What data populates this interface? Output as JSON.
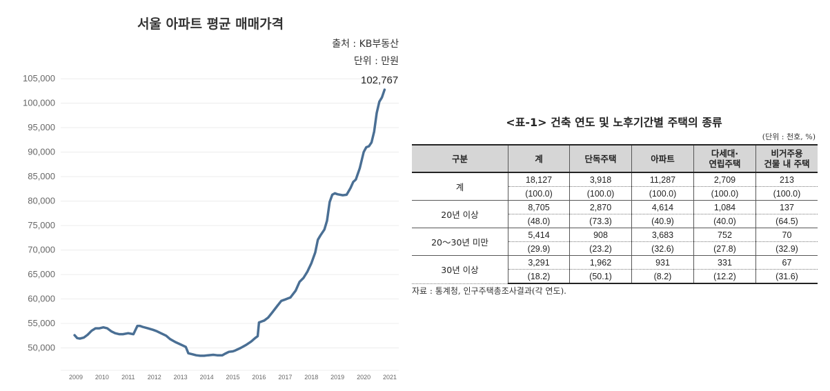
{
  "chart_data": {
    "type": "line",
    "title": "서울 아파트 평균 매매가격",
    "source": "출처 : KB부동산",
    "unit": "단위 : 만원",
    "last_value_label": "102,767",
    "xlim": [
      2009,
      2021
    ],
    "ylim": [
      45000,
      107000
    ],
    "y_ticks": [
      "105,000",
      "100,000",
      "95,000",
      "90,000",
      "85,000",
      "80,000",
      "75,000",
      "70,000",
      "65,000",
      "60,000",
      "55,000",
      "50,000"
    ],
    "y_tick_values": [
      105000,
      100000,
      95000,
      90000,
      85000,
      80000,
      75000,
      70000,
      65000,
      60000,
      55000,
      50000
    ],
    "x_ticks": [
      "2009",
      "2010",
      "2011",
      "2012",
      "2013",
      "2014",
      "2015",
      "2016",
      "2017",
      "2018",
      "2019",
      "2020",
      "2021"
    ],
    "x_tick_values": [
      2009,
      2010,
      2011,
      2012,
      2013,
      2014,
      2015,
      2016,
      2017,
      2018,
      2019,
      2020,
      2021
    ],
    "grid": true,
    "line_color": "#4a6f94",
    "series": [
      {
        "x": [
          2008.95,
          2009.05,
          2009.15,
          2009.3,
          2009.45,
          2009.6,
          2009.75,
          2009.9,
          2010.05,
          2010.2,
          2010.35,
          2010.5,
          2010.65,
          2010.8,
          2011.0,
          2011.2,
          2011.35,
          2011.45,
          2011.55,
          2011.75,
          2011.95,
          2012.1,
          2012.25,
          2012.45,
          2012.6,
          2012.8,
          2013.0,
          2013.2,
          2013.3,
          2013.45,
          2013.6,
          2013.75,
          2013.9,
          2014.05,
          2014.25,
          2014.4,
          2014.6,
          2014.7,
          2014.85,
          2015.0,
          2015.1,
          2015.3,
          2015.5,
          2015.7,
          2015.85,
          2015.95,
          2016.0,
          2016.2,
          2016.35,
          2016.5,
          2016.7,
          2016.85,
          2017.0,
          2017.2,
          2017.4,
          2017.55,
          2017.7,
          2017.85,
          2018.0,
          2018.15,
          2018.25,
          2018.35,
          2018.5,
          2018.6,
          2018.7,
          2018.8,
          2018.9,
          2019.0,
          2019.2,
          2019.35,
          2019.5,
          2019.6,
          2019.7,
          2019.85,
          2020.0,
          2020.1,
          2020.2,
          2020.3,
          2020.4,
          2020.5,
          2020.6,
          2020.7,
          2020.8,
          2020.9,
          2021.0,
          2021.1
        ],
        "y": [
          52600,
          52000,
          51900,
          52100,
          52700,
          53500,
          54000,
          54000,
          54200,
          54000,
          53400,
          53000,
          52800,
          52800,
          53000,
          52800,
          54500,
          54500,
          54300,
          54000,
          53700,
          53400,
          53000,
          52500,
          51800,
          51200,
          50700,
          50200,
          48900,
          48700,
          48500,
          48400,
          48400,
          48500,
          48600,
          48500,
          48500,
          48800,
          49200,
          49300,
          49500,
          50000,
          50600,
          51300,
          52000,
          52400,
          55200,
          55600,
          56200,
          57200,
          58600,
          59600,
          59900,
          60300,
          61700,
          63500,
          64300,
          65600,
          67300,
          69500,
          72100,
          73000,
          74200,
          76000,
          79800,
          81300,
          81600,
          81400,
          81200,
          81300,
          82700,
          83900,
          84400,
          86700,
          90000,
          91000,
          91200,
          92000,
          94200,
          98000,
          100300,
          101200,
          102767,
          102767,
          102767,
          102767
        ]
      }
    ]
  },
  "table": {
    "title": "<표-1> 건축 연도 및 노후기간별 주택의 종류",
    "unit": "(단위 : 천호, %)",
    "headers": [
      {
        "line1": "구분",
        "line2": ""
      },
      {
        "line1": "계",
        "line2": ""
      },
      {
        "line1": "단독주택",
        "line2": ""
      },
      {
        "line1": "아파트",
        "line2": ""
      },
      {
        "line1": "다세대·",
        "line2": "연립주택"
      },
      {
        "line1": "비거주용",
        "line2": "건물 내 주택"
      }
    ],
    "rows": [
      {
        "label": "계",
        "values": [
          "18,127",
          "3,918",
          "11,287",
          "2,709",
          "213"
        ],
        "percents": [
          "(100.0)",
          "(100.0)",
          "(100.0)",
          "(100.0)",
          "(100.0)"
        ]
      },
      {
        "label": "20년 이상",
        "values": [
          "8,705",
          "2,870",
          "4,614",
          "1,084",
          "137"
        ],
        "percents": [
          "(48.0)",
          "(73.3)",
          "(40.9)",
          "(40.0)",
          "(64.5)"
        ]
      },
      {
        "label": "20～30년 미만",
        "values": [
          "5,414",
          "908",
          "3,683",
          "752",
          "70"
        ],
        "percents": [
          "(29.9)",
          "(23.2)",
          "(32.6)",
          "(27.8)",
          "(32.9)"
        ]
      },
      {
        "label": "30년 이상",
        "values": [
          "3,291",
          "1,962",
          "931",
          "331",
          "67"
        ],
        "percents": [
          "(18.2)",
          "(50.1)",
          "(8.2)",
          "(12.2)",
          "(31.6)"
        ]
      }
    ],
    "source": "자료 : 통계청, 인구주택총조사결과(각 연도)."
  }
}
